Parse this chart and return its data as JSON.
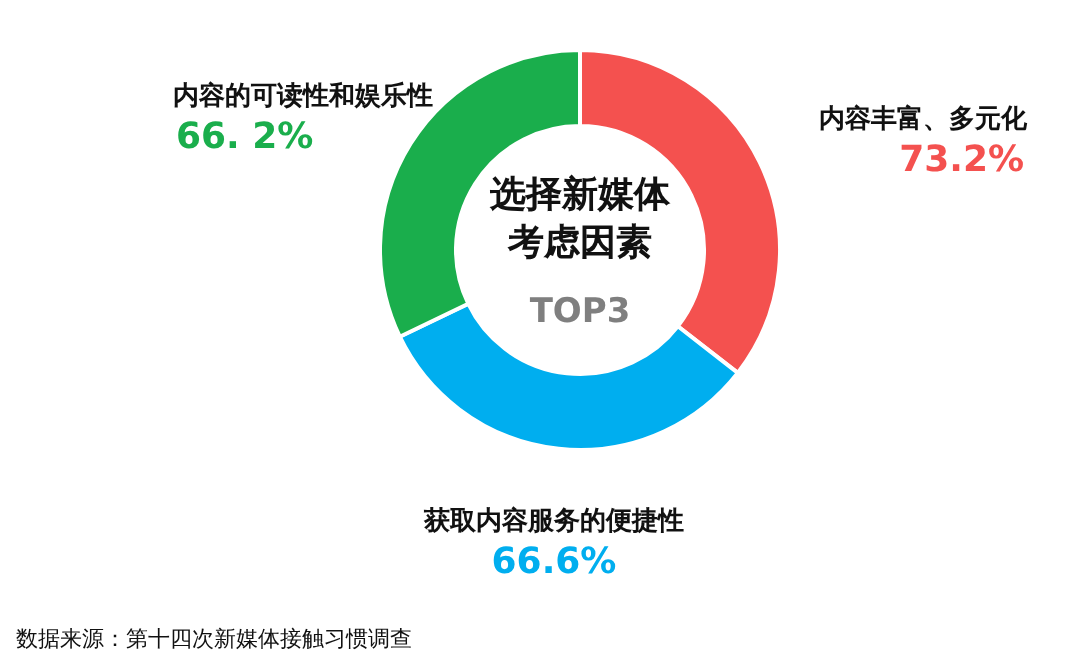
{
  "chart_data": {
    "type": "donut",
    "title": "选择新媒体考虑因素",
    "subtitle": "TOP3",
    "categories": [
      "内容丰富、多元化",
      "获取内容服务的便捷性",
      "内容的可读性和娱乐性"
    ],
    "values": [
      73.2,
      66.6,
      66.2
    ],
    "value_labels": [
      "73.2%",
      "66.6%",
      "66. 2%"
    ],
    "colors": [
      "#f4514f",
      "#00aeef",
      "#1aae4c"
    ],
    "annotations": [
      "数据来源：第十四次新媒体接触习惯调查"
    ]
  }
}
